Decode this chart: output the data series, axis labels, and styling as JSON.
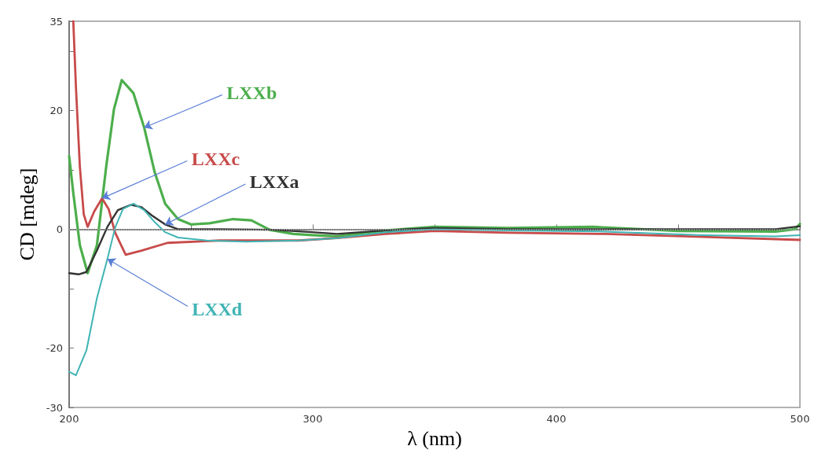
{
  "chart_data": {
    "type": "line",
    "xlabel": "λ (nm)",
    "ylabel": "CD [mdeg]",
    "xlim": [
      200,
      500
    ],
    "xticks": [
      200,
      {
        "value": 250,
        "label": null
      },
      300,
      {
        "value": 350,
        "label": null
      },
      400,
      {
        "value": 450,
        "label": null
      },
      500
    ],
    "ylim": [
      -30,
      35
    ],
    "yticks": [
      -30,
      -20,
      {
        "value": -10,
        "label": null
      },
      0,
      {
        "value": 10,
        "label": null
      },
      20,
      {
        "value": 30,
        "label": null
      },
      35
    ],
    "grid": false,
    "legend": false,
    "marker": "none",
    "line_style": "solid",
    "ref_lines": [
      {
        "axis": "y",
        "value": 0,
        "color": "#aaaaaa",
        "line_style": "dotted"
      }
    ],
    "series": [
      {
        "name": "LXXb",
        "color": "#4cae4c",
        "x": [
          200,
          201.7,
          204.4,
          207.6,
          211.4,
          215.2,
          218.4,
          221.6,
          226.4,
          230.8,
          235.1,
          239.4,
          244.7,
          250,
          257.6,
          267.3,
          274.8,
          282.3,
          292,
          299.6,
          310,
          330,
          350,
          380,
          415,
          450,
          490,
          498,
          500
        ],
        "values": [
          12.3,
          6.1,
          -2.7,
          -7.4,
          -2.7,
          10.5,
          20.2,
          25.1,
          22.9,
          17.1,
          9.6,
          4.3,
          1.7,
          0.8,
          1.0,
          1.7,
          1.5,
          -0.1,
          -0.8,
          -1.0,
          -1.2,
          -0.2,
          0.4,
          0.2,
          0.4,
          -0.3,
          -0.4,
          0,
          0.9
        ]
      },
      {
        "name": "LXXc",
        "color": "#c84a4a",
        "x": [
          201.7,
          202.8,
          204.4,
          206,
          207.6,
          210.3,
          213.5,
          216.2,
          218.9,
          223.2,
          229.7,
          240.4,
          261.9,
          294.2,
          310,
          330,
          350,
          380,
          420,
          460,
          500
        ],
        "values": [
          35,
          23.8,
          10.5,
          2.5,
          0.4,
          3.0,
          5.2,
          3.4,
          -0.6,
          -4.3,
          -3.6,
          -2.3,
          -1.9,
          -1.9,
          -1.5,
          -0.8,
          -0.3,
          -0.6,
          -0.8,
          -1.3,
          -1.8
        ]
      },
      {
        "name": "LXXa",
        "color": "#333333",
        "x": [
          200,
          203.9,
          207.1,
          211.4,
          215.7,
          220,
          225.4,
          229.7,
          234,
          239.4,
          244.7,
          261.9,
          283.4,
          299.6,
          310,
          330,
          350,
          380,
          420,
          460,
          490,
          500
        ],
        "values": [
          -7.4,
          -7.6,
          -7.2,
          -3.6,
          0.4,
          3.2,
          4.1,
          3.7,
          2.3,
          0.8,
          0,
          0,
          -0.1,
          -0.5,
          -0.8,
          -0.2,
          0.2,
          0,
          0,
          0,
          0,
          0.5
        ]
      },
      {
        "name": "LXXd",
        "color": "#40b4b4",
        "x": [
          200,
          202.8,
          207.1,
          211.4,
          215.7,
          218.9,
          222.1,
          226.4,
          230.8,
          235.1,
          239.4,
          244.7,
          256.5,
          272.6,
          294.2,
          310,
          330,
          350,
          380,
          420,
          460,
          490,
          500
        ],
        "values": [
          -24,
          -24.6,
          -20.4,
          -11.6,
          -5,
          0.3,
          3.4,
          4.3,
          3.2,
          1.2,
          -0.5,
          -1.4,
          -1.9,
          -2.1,
          -1.9,
          -1.5,
          -0.5,
          0,
          -0.2,
          -0.4,
          -1.0,
          -1.2,
          -1.0
        ]
      }
    ]
  }
}
